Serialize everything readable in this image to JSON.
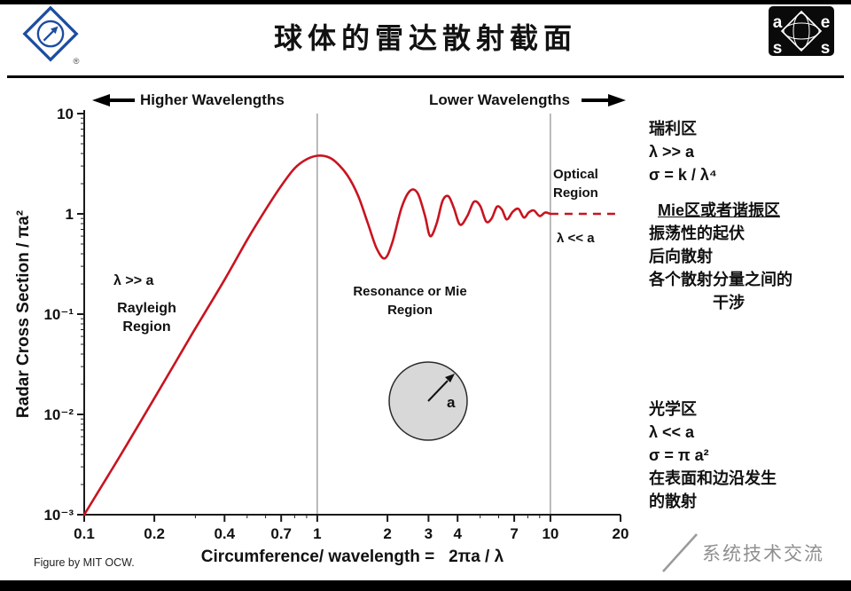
{
  "slide": {
    "title": "球体的雷达散射截面",
    "figure_credit": "Figure by MIT OCW.",
    "brand": "系统技术交流"
  },
  "logos": {
    "aess_letters": [
      "a",
      "e",
      "s",
      "s"
    ],
    "ieee_registered": "®"
  },
  "chart_data": {
    "type": "line",
    "x_scale": "log",
    "y_scale": "log",
    "xlim": [
      0.1,
      20
    ],
    "ylim": [
      0.001,
      10
    ],
    "xlabel": "Circumference/ wavelength =   2πa / λ",
    "ylabel": "Radar Cross Section / πa²",
    "grid": "vertical lines at x=1 and x=10 only",
    "legend": "none",
    "curve_color": "#c81420",
    "x_ticks": [
      {
        "v": 0.1,
        "label": "0.1"
      },
      {
        "v": 0.2,
        "label": "0.2"
      },
      {
        "v": 0.4,
        "label": "0.4"
      },
      {
        "v": 0.7,
        "label": "0.7"
      },
      {
        "v": 1,
        "label": "1"
      },
      {
        "v": 2,
        "label": "2"
      },
      {
        "v": 3,
        "label": "3"
      },
      {
        "v": 4,
        "label": "4"
      },
      {
        "v": 7,
        "label": "7"
      },
      {
        "v": 10,
        "label": "10"
      },
      {
        "v": 20,
        "label": "20"
      }
    ],
    "y_ticks": [
      {
        "v": 10,
        "label": "10"
      },
      {
        "v": 1,
        "label": "1"
      },
      {
        "v": 0.1,
        "label": "10⁻¹"
      },
      {
        "v": 0.01,
        "label": "10⁻²"
      },
      {
        "v": 0.001,
        "label": "10⁻³"
      }
    ],
    "x_minor_ticks": [
      0.3,
      0.5,
      0.6,
      0.8,
      0.9,
      5,
      6,
      8,
      9
    ],
    "gridlines_x": [
      1,
      10
    ],
    "series": [
      {
        "name": "sphere-rcs-curve",
        "style": "solid",
        "x": [
          0.1,
          0.12,
          0.15,
          0.2,
          0.25,
          0.3,
          0.4,
          0.5,
          0.6,
          0.7,
          0.8,
          0.9,
          1.0,
          1.1,
          1.2,
          1.35,
          1.5,
          1.65,
          1.8,
          1.95,
          2.1,
          2.3,
          2.5,
          2.7,
          2.9,
          3.05,
          3.25,
          3.45,
          3.65,
          3.85,
          4.1,
          4.4,
          4.7,
          5.0,
          5.3,
          5.6,
          5.9,
          6.2,
          6.5,
          6.9,
          7.3,
          7.7,
          8.1,
          8.5,
          9.0,
          9.5,
          10
        ],
        "y": [
          0.001,
          0.002,
          0.0047,
          0.0145,
          0.035,
          0.072,
          0.22,
          0.55,
          1.1,
          1.9,
          2.85,
          3.5,
          3.8,
          3.72,
          3.3,
          2.4,
          1.5,
          0.8,
          0.45,
          0.36,
          0.52,
          1.15,
          1.7,
          1.6,
          0.95,
          0.6,
          0.8,
          1.35,
          1.5,
          1.15,
          0.78,
          0.95,
          1.32,
          1.2,
          0.84,
          0.9,
          1.18,
          1.1,
          0.88,
          1.05,
          1.12,
          0.92,
          1.04,
          1.08,
          0.95,
          1.03,
          1.0
        ]
      },
      {
        "name": "optical-asymptote",
        "style": "dashed",
        "x": [
          10,
          20
        ],
        "y": [
          1,
          1
        ]
      }
    ],
    "direction_arrows": {
      "left": "Higher Wavelengths",
      "right": "Lower Wavelengths"
    },
    "regions": {
      "rayleigh_condition": "λ >> a",
      "rayleigh_label": "Rayleigh Region",
      "mie_label": "Resonance or Mie Region",
      "optical_label": "Optical Region",
      "optical_condition": "λ << a",
      "sphere_radius_label": "a"
    }
  },
  "right_panel": {
    "rayleigh": {
      "title": "瑞利区",
      "lines": [
        "λ >> a",
        "σ = k / λ⁴"
      ]
    },
    "mie": {
      "title": "Mie区或者谐振区",
      "lines": [
        "振荡性的起伏",
        "后向散射",
        "各个散射分量之间的",
        "干涉"
      ]
    },
    "optical": {
      "title": "光学区",
      "lines": [
        "λ << a",
        "σ = π a²",
        "在表面和边沿发生",
        "的散射"
      ]
    }
  }
}
